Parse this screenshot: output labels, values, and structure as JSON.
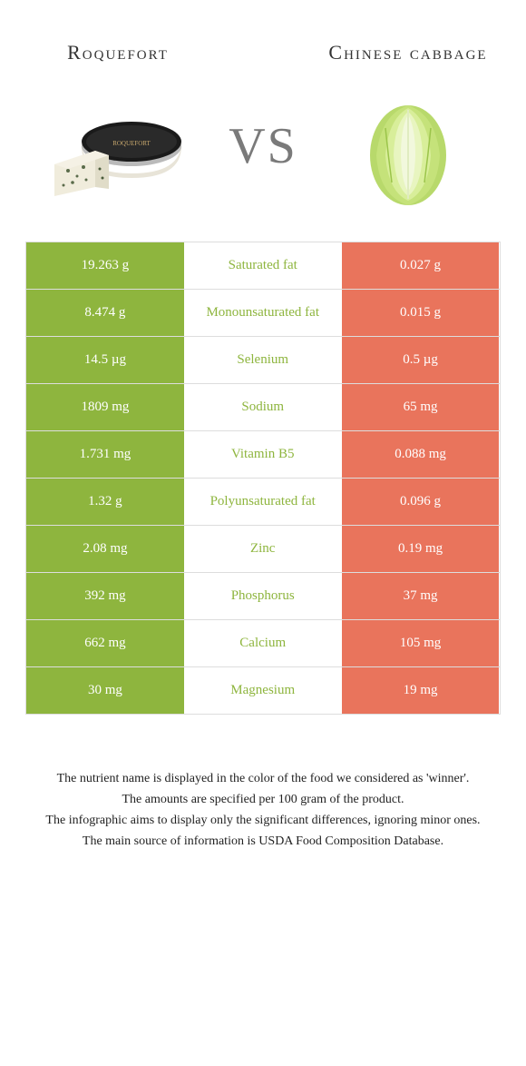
{
  "colors": {
    "left": "#8eb53e",
    "right": "#e9745c"
  },
  "header": {
    "left_title": "Roquefort",
    "right_title": "Chinese cabbage",
    "vs": "VS"
  },
  "rows": [
    {
      "left": "19.263 g",
      "mid": "Saturated fat",
      "right": "0.027 g",
      "winner": "left"
    },
    {
      "left": "8.474 g",
      "mid": "Monounsaturated fat",
      "right": "0.015 g",
      "winner": "left"
    },
    {
      "left": "14.5 µg",
      "mid": "Selenium",
      "right": "0.5 µg",
      "winner": "left"
    },
    {
      "left": "1809 mg",
      "mid": "Sodium",
      "right": "65 mg",
      "winner": "left"
    },
    {
      "left": "1.731 mg",
      "mid": "Vitamin B5",
      "right": "0.088 mg",
      "winner": "left"
    },
    {
      "left": "1.32 g",
      "mid": "Polyunsaturated fat",
      "right": "0.096 g",
      "winner": "left"
    },
    {
      "left": "2.08 mg",
      "mid": "Zinc",
      "right": "0.19 mg",
      "winner": "left"
    },
    {
      "left": "392 mg",
      "mid": "Phosphorus",
      "right": "37 mg",
      "winner": "left"
    },
    {
      "left": "662 mg",
      "mid": "Calcium",
      "right": "105 mg",
      "winner": "left"
    },
    {
      "left": "30 mg",
      "mid": "Magnesium",
      "right": "19 mg",
      "winner": "left"
    }
  ],
  "footnotes": [
    "The nutrient name is displayed in the color of the food we considered as 'winner'.",
    "The amounts are specified per 100 gram of the product.",
    "The infographic aims to display only the significant differences, ignoring minor ones.",
    "The main source of information is USDA Food Composition Database."
  ]
}
